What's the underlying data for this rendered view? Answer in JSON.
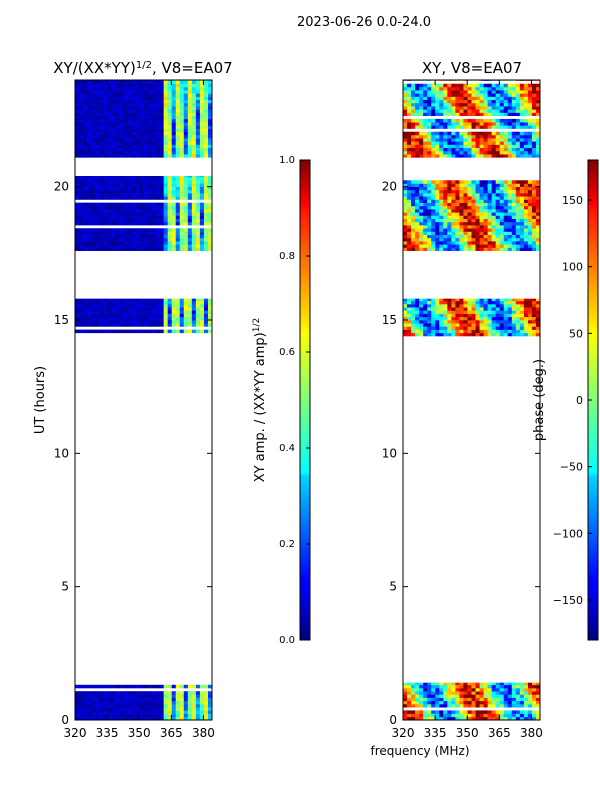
{
  "figure_title": "2023-06-26 0.0-24.0",
  "shared_xlabel": "frequency (MHz)",
  "chart_data": [
    {
      "type": "heatmap",
      "title": "XY/(XX*YY)^1/2, V8=EA07",
      "title_main": "XY/(XX*YY)",
      "title_sup": "1/2",
      "title_suffix": ", V8=EA07",
      "ylabel": "UT (hours)",
      "xlim": [
        320,
        384
      ],
      "ylim": [
        0,
        24
      ],
      "xticks": [
        320,
        335,
        350,
        365,
        380
      ],
      "yticks": [
        0,
        5,
        10,
        15,
        20
      ],
      "colorscale": "jet",
      "data_ut_ranges": [
        [
          0.0,
          1.4
        ],
        [
          14.4,
          15.8
        ],
        [
          17.6,
          20.4
        ],
        [
          21.1,
          24.0
        ]
      ],
      "colorbar": {
        "label_main": "XY amp. / (XX*YY amp)",
        "label_sup": "1/2",
        "range": [
          0.0,
          1.0
        ],
        "ticks": [
          "0.0",
          "0.2",
          "0.4",
          "0.6",
          "0.8",
          "1.0"
        ]
      }
    },
    {
      "type": "heatmap",
      "title": "XY, V8=EA07",
      "ylabel": "",
      "xlim": [
        320,
        384
      ],
      "ylim": [
        0,
        24
      ],
      "xticks": [
        320,
        335,
        350,
        365,
        380
      ],
      "yticks": [
        0,
        5,
        10,
        15,
        20
      ],
      "colorscale": "jet",
      "data_ut_ranges": [
        [
          0.0,
          1.4
        ],
        [
          14.4,
          15.8
        ],
        [
          17.6,
          20.4
        ],
        [
          21.1,
          24.0
        ]
      ],
      "colorbar": {
        "label": "phase (deg.)",
        "range": [
          -180,
          180
        ],
        "ticks": [
          "150",
          "100",
          "50",
          "0",
          "−50",
          "−100",
          "−150"
        ],
        "tick_values": [
          150,
          100,
          50,
          0,
          -50,
          -100,
          -150
        ]
      }
    }
  ]
}
